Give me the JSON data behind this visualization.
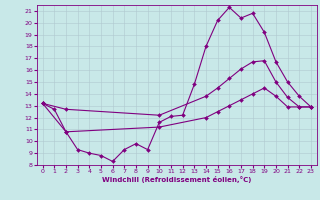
{
  "xlabel": "Windchill (Refroidissement éolien,°C)",
  "bg_color": "#c8e8e8",
  "line_color": "#800080",
  "grid_color": "#b0c8d0",
  "xlim": [
    -0.5,
    23.5
  ],
  "ylim": [
    8,
    21.5
  ],
  "yticks": [
    8,
    9,
    10,
    11,
    12,
    13,
    14,
    15,
    16,
    17,
    18,
    19,
    20,
    21
  ],
  "xticks": [
    0,
    1,
    2,
    3,
    4,
    5,
    6,
    7,
    8,
    9,
    10,
    11,
    12,
    13,
    14,
    15,
    16,
    17,
    18,
    19,
    20,
    21,
    22,
    23
  ],
  "line1_x": [
    0,
    1,
    2,
    3,
    4,
    5,
    6,
    7,
    8,
    9,
    10,
    11,
    12,
    13,
    14,
    15,
    16,
    17,
    18,
    19,
    20,
    21,
    22,
    23
  ],
  "line1_y": [
    13.2,
    12.7,
    10.8,
    9.3,
    9.0,
    8.8,
    8.3,
    9.3,
    9.8,
    9.3,
    11.6,
    12.1,
    12.2,
    14.8,
    18.0,
    20.2,
    21.3,
    20.4,
    20.8,
    19.2,
    16.7,
    15.0,
    13.8,
    12.9
  ],
  "line2_x": [
    0,
    2,
    10,
    14,
    15,
    16,
    17,
    18,
    19,
    20,
    21,
    22,
    23
  ],
  "line2_y": [
    13.2,
    12.7,
    12.2,
    13.8,
    14.5,
    15.3,
    16.1,
    16.7,
    16.8,
    15.0,
    13.7,
    12.9,
    12.9
  ],
  "line3_x": [
    0,
    2,
    10,
    14,
    15,
    16,
    17,
    18,
    19,
    20,
    21,
    22,
    23
  ],
  "line3_y": [
    13.2,
    10.8,
    11.2,
    12.0,
    12.5,
    13.0,
    13.5,
    14.0,
    14.5,
    13.8,
    12.9,
    12.9,
    12.9
  ],
  "marker": "D",
  "markersize": 2,
  "linewidth": 0.8,
  "tick_fontsize": 4.5,
  "xlabel_fontsize": 5.0
}
